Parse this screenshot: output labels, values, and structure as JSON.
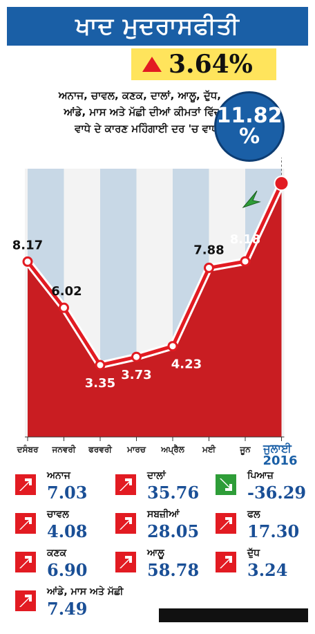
{
  "header": {
    "title": "ਖਾਦ ਮੁਦਰਾਸਫੀਤੀ"
  },
  "badge": {
    "value": "3.64%"
  },
  "subtitle": {
    "line1": "ਅਨਾਜ, ਚਾਵਲ, ਕਣਕ, ਦਾਲਾਂ, ਆਲੂ, ਦੁੱਧ,",
    "line2": "ਆਂਡੇ, ਮਾਸ ਅਤੇ ਮੱਛੀ ਦੀਆਂ ਕੀਮਤਾਂ ਵਿੱਚ",
    "line3": "ਵਾਧੇ ਦੇ ਕਾਰਣ ਮਹਿੰਗਾਈ ਦਰ 'ਚ ਵਾਧਾ"
  },
  "highlight": {
    "value": "11.82",
    "unit": "%"
  },
  "colors": {
    "accent": "#1a5fa6",
    "line": "#e21b22",
    "area": "#c91d22",
    "column": "#c8d8e6"
  },
  "chart_data": {
    "type": "line",
    "categories": [
      "ਦਸੰਬਰ",
      "ਜਨਵਰੀ",
      "ਫਰਵਰੀ",
      "ਮਾਰਚ",
      "ਅਪ੍ਰੈਲ",
      "ਮਈ",
      "ਜੂਨ",
      "ਜੁਲਾਈ"
    ],
    "values": [
      8.17,
      6.02,
      3.35,
      3.73,
      4.23,
      7.88,
      8.18,
      11.82
    ],
    "labels": [
      "8.17",
      "6.02",
      "3.35",
      "3.73",
      "4.23",
      "7.88",
      "8.18",
      ""
    ],
    "year_label": "2016",
    "ylim": [
      0,
      12.5
    ]
  },
  "items": [
    {
      "label": "ਅਨਾਜ",
      "value": "7.03",
      "trend": "up"
    },
    {
      "label": "ਦਾਲਾਂ",
      "value": "35.76",
      "trend": "up"
    },
    {
      "label": "ਪਿਆਜ਼",
      "value": "-36.29",
      "trend": "down"
    },
    {
      "label": "ਚਾਵਲ",
      "value": "4.08",
      "trend": "up"
    },
    {
      "label": "ਸਬਜ਼ੀਆਂ",
      "value": "28.05",
      "trend": "up"
    },
    {
      "label": "ਫਲ",
      "value": "17.30",
      "trend": "up"
    },
    {
      "label": "ਕਣਕ",
      "value": "6.90",
      "trend": "up"
    },
    {
      "label": "ਆਲੂ",
      "value": "58.78",
      "trend": "up"
    },
    {
      "label": "ਦੁੱਧ",
      "value": "3.24",
      "trend": "up"
    },
    {
      "label": "ਆਂਡੇ, ਮਾਸ ਅਤੇ ਮੱਛੀ",
      "value": "7.49",
      "trend": "up"
    }
  ]
}
